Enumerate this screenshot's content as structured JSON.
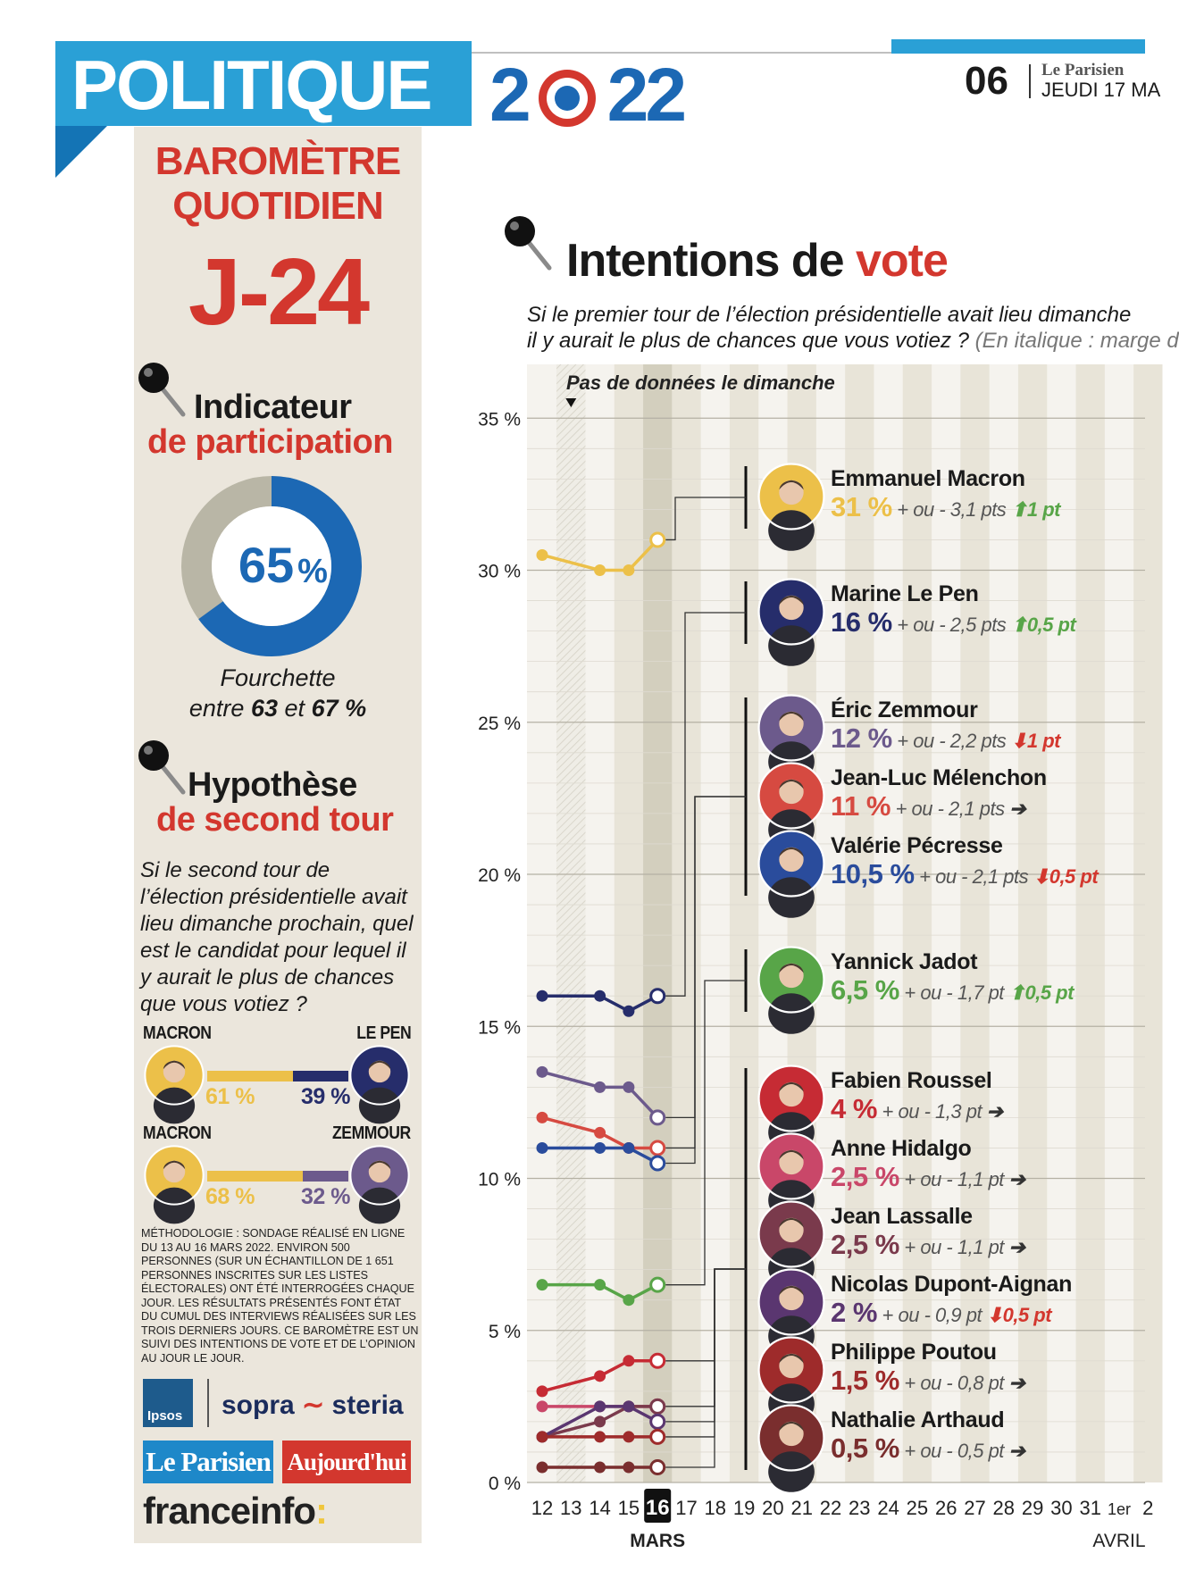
{
  "header": {
    "section": "POLITIQUE",
    "year_parts": [
      "2",
      "22"
    ],
    "page_number": "06",
    "publication": "Le Parisien",
    "date": "JEUDI 17 MA"
  },
  "sidebar": {
    "barometer_line1": "BAROMÈTRE",
    "barometer_line2": "QUOTIDIEN",
    "countdown": "J-24",
    "participation": {
      "title": "Indicateur",
      "subtitle": "de participation",
      "value": 65,
      "value_label": "65",
      "unit": "%",
      "range_label": "Fourchette",
      "range_prefix": "entre",
      "range_low": "63",
      "range_mid": "et",
      "range_high": "67 %"
    },
    "second_round": {
      "title": "Hypothèse",
      "subtitle": "de second tour",
      "question": "Si le second tour de l’élection présidentielle avait lieu dimanche prochain, quel est le candidat pour lequel il y aurait le plus de chances que vous votiez ?",
      "duels": [
        {
          "left_name": "MACRON",
          "right_name": "LE PEN",
          "left_pct": 61,
          "right_pct": 39,
          "left_label": "61 %",
          "right_label": "39 %",
          "left_color": "#ecc049",
          "right_color": "#262d6b"
        },
        {
          "left_name": "MACRON",
          "right_name": "ZEMMOUR",
          "left_pct": 68,
          "right_pct": 32,
          "left_label": "68 %",
          "right_label": "32 %",
          "left_color": "#ecc049",
          "right_color": "#6c5a8c"
        }
      ]
    },
    "methodology": "MÉTHODOLOGIE : SONDAGE RÉALISÉ EN LIGNE DU 13 AU 16 MARS 2022. ENVIRON 500 PERSONNES (SUR UN ÉCHANTILLON DE 1 651 PERSONNES INSCRITES SUR LES LISTES ÉLECTORALES) ONT ÉTÉ INTERROGÉES CHAQUE JOUR. LES RÉSULTATS PRÉSENTÉS FONT ÉTAT DU CUMUL DES INTERVIEWS RÉALISÉES SUR LES TROIS DERNIERS JOURS. CE BAROMÈTRE EST UN SUIVI DES INTENTIONS DE VOTE ET DE L’OPINION AU JOUR LE JOUR.",
    "logos": {
      "ipsos": "Ipsos",
      "sopra": "sopra",
      "steria": "steria",
      "le_parisien": "Le Parisien",
      "aujourdhui": "Aujourd'hui",
      "franceinfo": "franceinfo",
      "franceinfo_suffix": ":"
    }
  },
  "chart_header": {
    "title_main": "Intentions de ",
    "title_accent": "vote",
    "question_line1": "Si le premier tour de l’élection présidentielle avait lieu dimanche",
    "question_line2": "il y aurait le plus de chances que vous votiez ?",
    "question_note": " (En italique : marge d"
  },
  "chart_data": {
    "type": "line",
    "ylim": [
      0,
      35
    ],
    "y_ticks": [
      0,
      5,
      10,
      15,
      20,
      25,
      30,
      35
    ],
    "y_tick_labels": [
      "0 %",
      "5 %",
      "10 %",
      "15 %",
      "20 %",
      "25 %",
      "30 %",
      "35 %"
    ],
    "x_tick_labels": [
      "12",
      "13",
      "14",
      "15",
      "16",
      "17",
      "18",
      "19",
      "20",
      "21",
      "22",
      "23",
      "24",
      "25",
      "26",
      "27",
      "28",
      "29",
      "30",
      "31",
      "1er",
      "2"
    ],
    "highlight_day": "16",
    "month_labels": [
      {
        "at": "16",
        "text": "MARS"
      },
      {
        "at": "1er",
        "text": "AVRIL"
      }
    ],
    "no_data_note": "Pas de données le dimanche",
    "no_data_day": "13",
    "data_days": [
      "12",
      "14",
      "15",
      "16"
    ],
    "series": [
      {
        "name": "Emmanuel Macron",
        "color": "#ecc049",
        "values": [
          30.5,
          30,
          30,
          31
        ],
        "label_pct": "31 %",
        "margin": "+ ou - 3,1 pts",
        "trend": "up",
        "change": "1 pt"
      },
      {
        "name": "Marine Le Pen",
        "color": "#262d6b",
        "values": [
          16,
          16,
          15.5,
          16
        ],
        "label_pct": "16 %",
        "margin": "+ ou - 2,5 pts",
        "trend": "up",
        "change": "0,5 pt"
      },
      {
        "name": "Éric Zemmour",
        "color": "#6c5a8c",
        "values": [
          13.5,
          13,
          13,
          12
        ],
        "label_pct": "12 %",
        "margin": "+ ou - 2,2 pts",
        "trend": "down",
        "change": "1 pt"
      },
      {
        "name": "Jean-Luc Mélenchon",
        "color": "#d64a41",
        "values": [
          12,
          11.5,
          11,
          11
        ],
        "label_pct": "11 %",
        "margin": "+ ou - 2,1 pts",
        "trend": "flat",
        "change": ""
      },
      {
        "name": "Valérie Pécresse",
        "color": "#2a4c9c",
        "values": [
          11,
          11,
          11,
          10.5
        ],
        "label_pct": "10,5 %",
        "margin": "+ ou - 2,1 pts",
        "trend": "down",
        "change": "0,5 pt"
      },
      {
        "name": "Yannick Jadot",
        "color": "#58a548",
        "values": [
          6.5,
          6.5,
          6,
          6.5
        ],
        "label_pct": "6,5 %",
        "margin": "+ ou - 1,7 pt",
        "trend": "up",
        "change": "0,5 pt"
      },
      {
        "name": "Fabien Roussel",
        "color": "#c62b34",
        "values": [
          3,
          3.5,
          4,
          4
        ],
        "label_pct": "4 %",
        "margin": "+ ou - 1,3 pt",
        "trend": "flat",
        "change": ""
      },
      {
        "name": "Anne Hidalgo",
        "color": "#c94769",
        "values": [
          2.5,
          2.5,
          2.5,
          2.5
        ],
        "label_pct": "2,5 %",
        "margin": "+ ou - 1,1 pt",
        "trend": "flat",
        "change": ""
      },
      {
        "name": "Jean Lassalle",
        "color": "#7a3a4c",
        "values": [
          1.5,
          2,
          2.5,
          2.5
        ],
        "label_pct": "2,5 %",
        "margin": "+ ou - 1,1 pt",
        "trend": "flat",
        "change": ""
      },
      {
        "name": "Nicolas Dupont-Aignan",
        "color": "#5a3670",
        "values": [
          1.5,
          2.5,
          2.5,
          2
        ],
        "label_pct": "2 %",
        "margin": "+ ou - 0,9 pt",
        "trend": "down",
        "change": "0,5 pt"
      },
      {
        "name": "Philippe Poutou",
        "color": "#9e2b2b",
        "values": [
          1.5,
          1.5,
          1.5,
          1.5
        ],
        "label_pct": "1,5 %",
        "margin": "+ ou - 0,8 pt",
        "trend": "flat",
        "change": ""
      },
      {
        "name": "Nathalie Arthaud",
        "color": "#7a2e2e",
        "values": [
          0.5,
          0.5,
          0.5,
          0.5
        ],
        "label_pct": "0,5 %",
        "margin": "+ ou - 0,5 pt",
        "trend": "flat",
        "change": ""
      }
    ],
    "groups": [
      {
        "members": [
          0
        ]
      },
      {
        "members": [
          1
        ]
      },
      {
        "members": [
          2,
          3,
          4
        ]
      },
      {
        "members": [
          5
        ]
      },
      {
        "members": [
          6,
          7,
          8,
          9,
          10,
          11
        ]
      }
    ]
  },
  "colors": {
    "red": "#d3372e",
    "blue": "#1c68b4",
    "sky": "#2aa0d6",
    "up": "#58a548",
    "down": "#d3372e",
    "flat": "#333333"
  }
}
